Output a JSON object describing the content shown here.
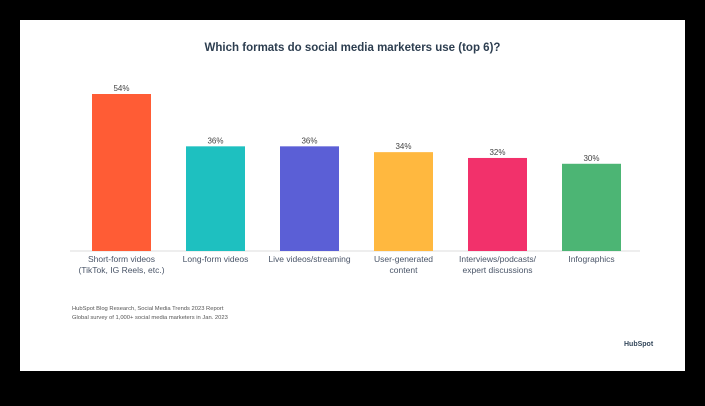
{
  "chart_data": {
    "type": "bar",
    "title": "Which formats do social media marketers use (top 6)?",
    "categories": [
      "Short-form videos\n(TikTok, IG Reels, etc.)",
      "Long-form videos",
      "Live videos/streaming",
      "User-generated\ncontent",
      "Interviews/podcasts/\nexpert discussions",
      "Infographics"
    ],
    "values": [
      54,
      36,
      36,
      34,
      32,
      30
    ],
    "data_labels": [
      "54%",
      "36%",
      "36%",
      "34%",
      "32%",
      "30%"
    ],
    "colors": [
      "#ff5c35",
      "#1ec0c0",
      "#5b5fd6",
      "#ffb83f",
      "#f2316b",
      "#4cb574"
    ],
    "xlabel": "",
    "ylabel": "",
    "ylim": [
      0,
      54
    ],
    "grid": false,
    "legend": "none"
  },
  "source": {
    "line1": "HubSpot Blog Research, Social Media Trends 2023 Report",
    "line2": "Global survey of 1,000+ social media marketers in Jan. 2023"
  },
  "logo": "HubSpot"
}
